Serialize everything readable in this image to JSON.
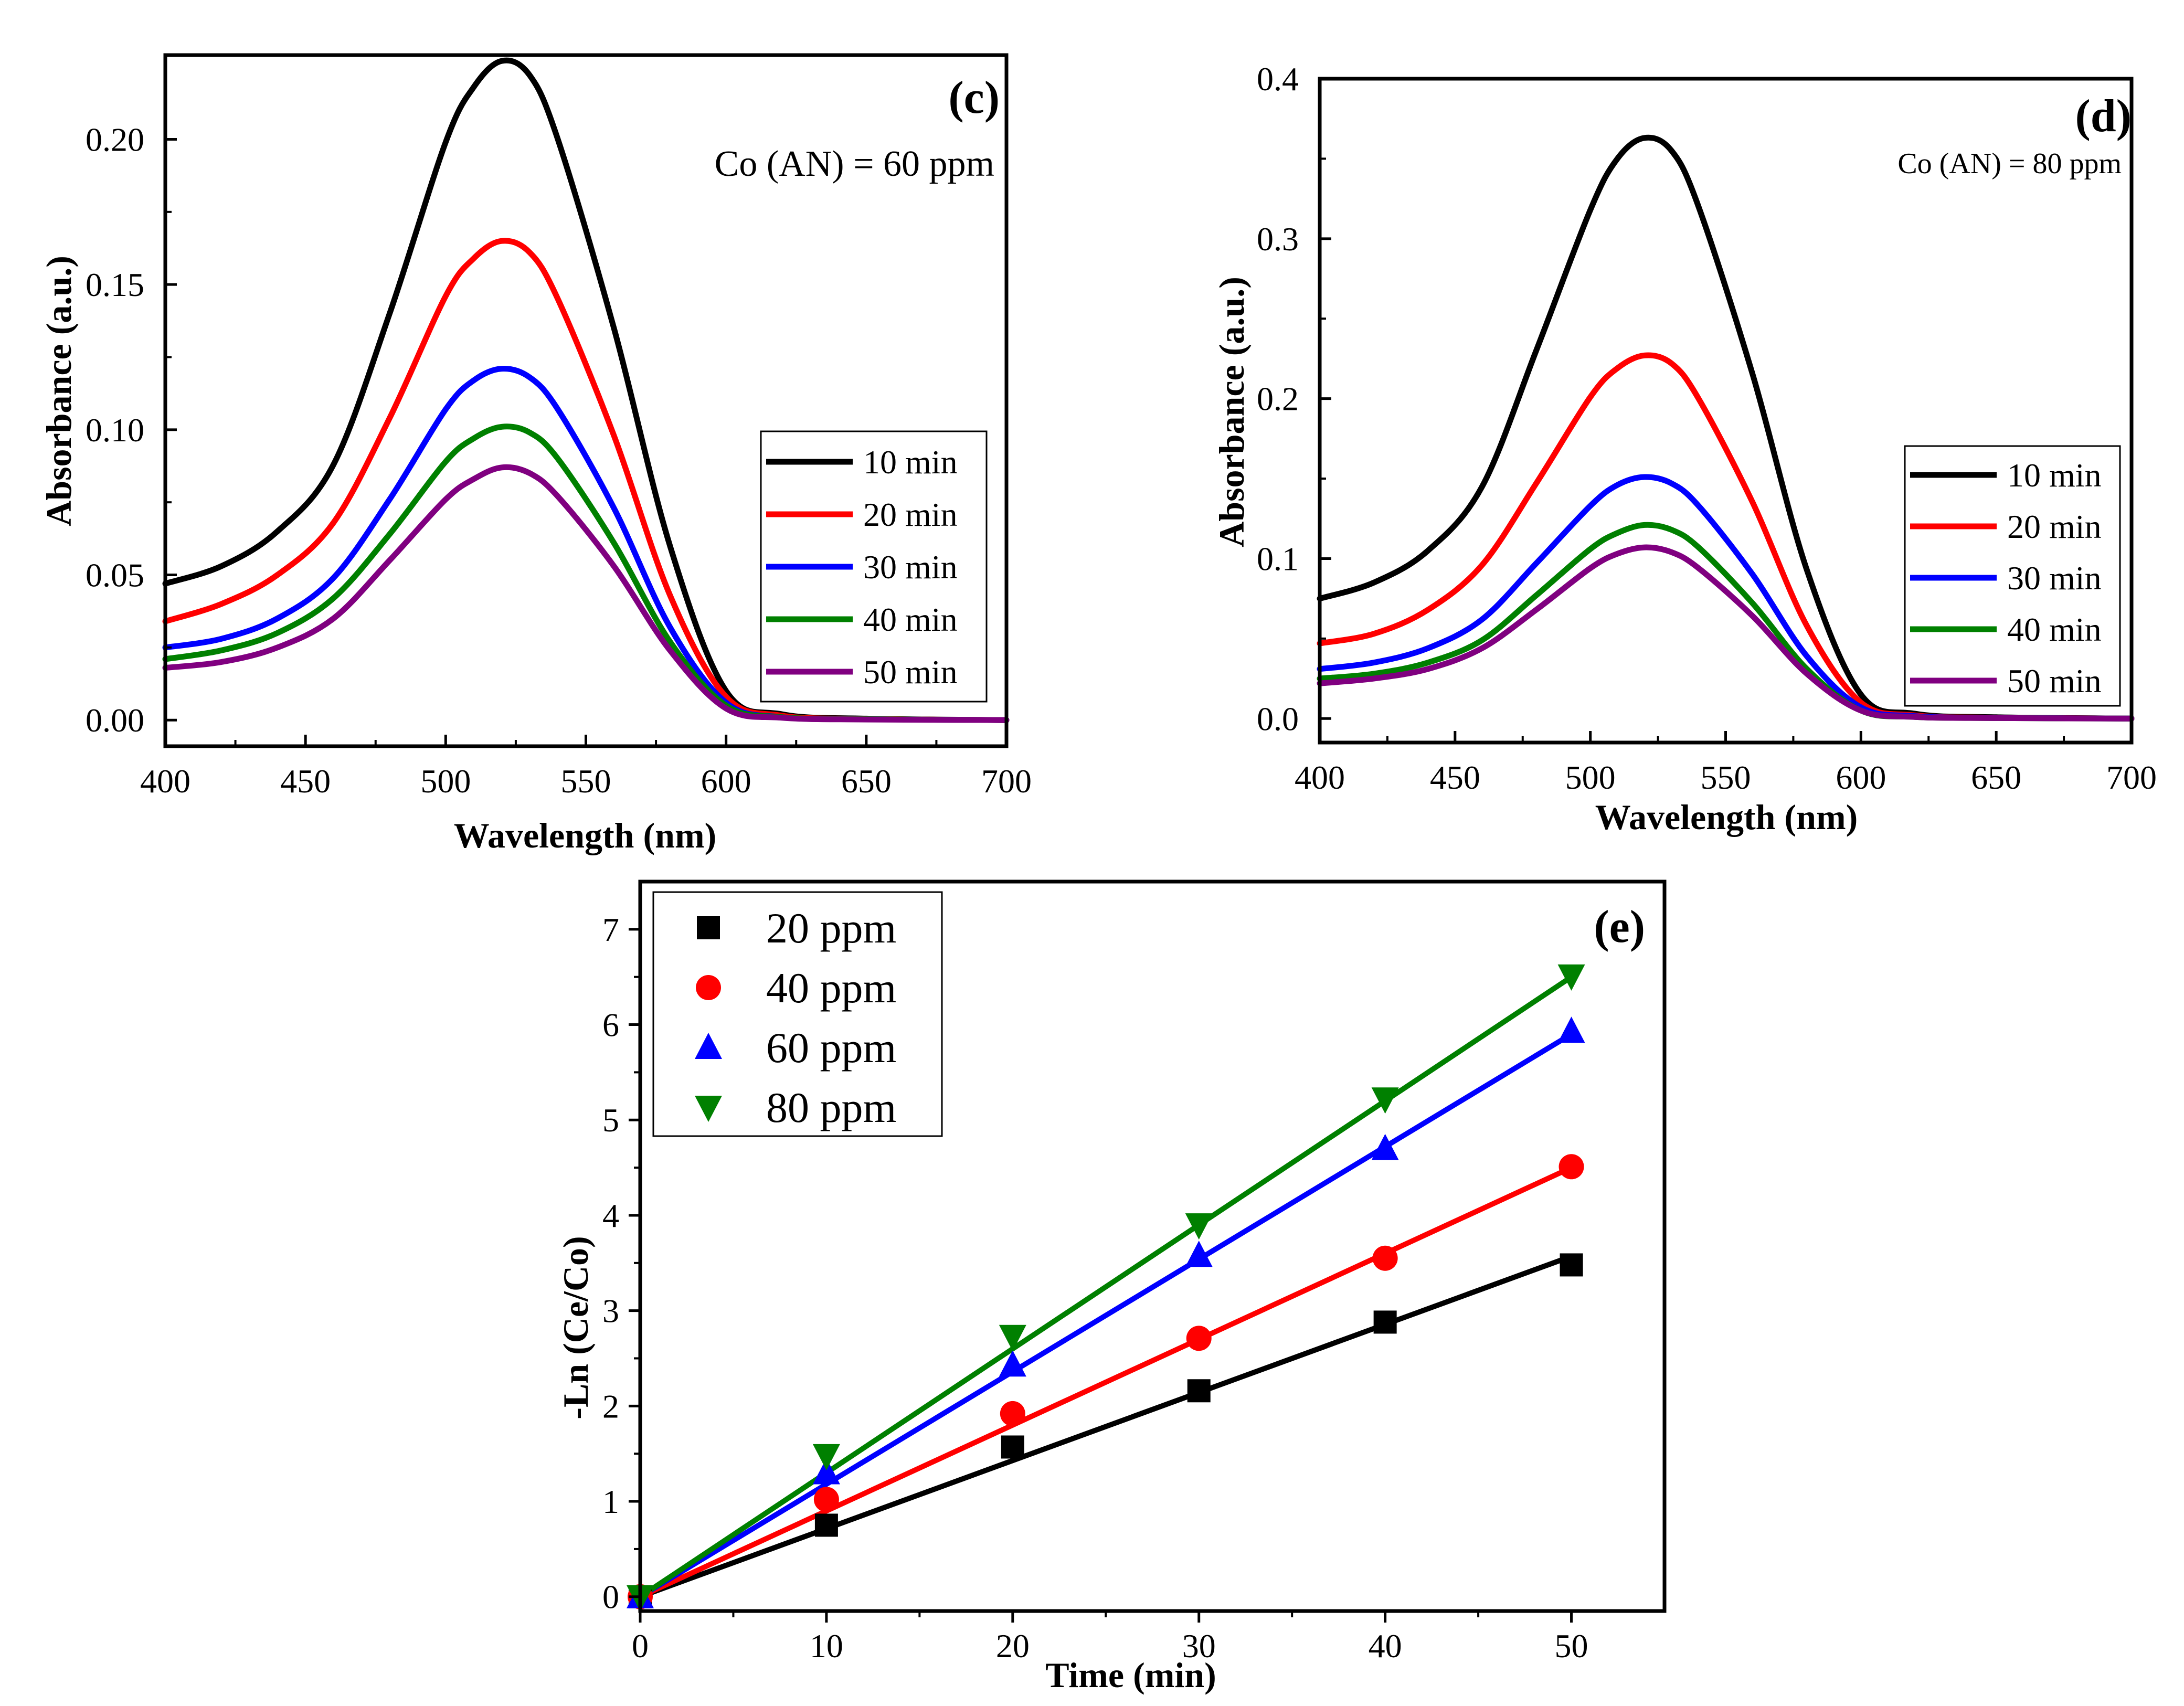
{
  "chart_data": [
    {
      "type": "line",
      "panel": "c",
      "panel_label": "(c)",
      "annotation": "Co (AN) = 60 ppm",
      "xlabel": "Wavelength (nm)",
      "ylabel": "Absorbance (a.u.)",
      "xlim": [
        400,
        700
      ],
      "ylim": [
        -0.009,
        0.229
      ],
      "xticks": [
        400,
        450,
        500,
        550,
        600,
        650,
        700
      ],
      "yticks": [
        0.0,
        0.05,
        0.1,
        0.15,
        0.2
      ],
      "ytick_labels": [
        "0.00",
        "0.05",
        "0.10",
        "0.15",
        "0.20"
      ],
      "legend_position": "center-right",
      "x": [
        400,
        420,
        440,
        460,
        480,
        500,
        510,
        520,
        530,
        540,
        560,
        580,
        600,
        620,
        650,
        700
      ],
      "series": [
        {
          "name": "10 min",
          "color": "#000000",
          "values": [
            0.047,
            0.053,
            0.065,
            0.088,
            0.14,
            0.199,
            0.218,
            0.227,
            0.222,
            0.2,
            0.135,
            0.06,
            0.01,
            0.002,
            0.0005,
            0.0
          ]
        },
        {
          "name": "20 min",
          "color": "#ff0000",
          "values": [
            0.034,
            0.04,
            0.05,
            0.068,
            0.104,
            0.146,
            0.159,
            0.165,
            0.161,
            0.145,
            0.098,
            0.043,
            0.008,
            0.0015,
            0.0004,
            0.0
          ]
        },
        {
          "name": "30 min",
          "color": "#0000ff",
          "values": [
            0.025,
            0.028,
            0.035,
            0.049,
            0.076,
            0.107,
            0.117,
            0.121,
            0.118,
            0.107,
            0.073,
            0.032,
            0.006,
            0.001,
            0.0003,
            0.0
          ]
        },
        {
          "name": "40 min",
          "color": "#008000",
          "values": [
            0.021,
            0.024,
            0.03,
            0.042,
            0.064,
            0.089,
            0.097,
            0.101,
            0.099,
            0.09,
            0.061,
            0.027,
            0.005,
            0.001,
            0.0003,
            0.0
          ]
        },
        {
          "name": "50 min",
          "color": "#800080",
          "values": [
            0.018,
            0.02,
            0.025,
            0.035,
            0.055,
            0.076,
            0.083,
            0.087,
            0.085,
            0.077,
            0.053,
            0.024,
            0.004,
            0.0008,
            0.0002,
            0.0
          ]
        }
      ]
    },
    {
      "type": "line",
      "panel": "d",
      "panel_label": "(d)",
      "annotation": "Co (AN) = 80 ppm",
      "xlabel": "Wavelength (nm)",
      "ylabel": "Absorbance (a.u.)",
      "xlim": [
        400,
        700
      ],
      "ylim": [
        -0.015,
        0.4
      ],
      "xticks": [
        400,
        450,
        500,
        550,
        600,
        650,
        700
      ],
      "yticks": [
        0.0,
        0.1,
        0.2,
        0.3,
        0.4
      ],
      "ytick_labels": [
        "0.0",
        "0.1",
        "0.2",
        "0.3",
        "0.4"
      ],
      "legend_position": "center-right",
      "x": [
        400,
        420,
        440,
        460,
        480,
        500,
        510,
        520,
        530,
        540,
        560,
        580,
        600,
        620,
        650,
        700
      ],
      "series": [
        {
          "name": "10 min",
          "color": "#000000",
          "values": [
            0.075,
            0.085,
            0.105,
            0.145,
            0.23,
            0.318,
            0.35,
            0.363,
            0.355,
            0.32,
            0.215,
            0.093,
            0.015,
            0.003,
            0.0008,
            0.0
          ]
        },
        {
          "name": "20 min",
          "color": "#ff0000",
          "values": [
            0.047,
            0.053,
            0.068,
            0.096,
            0.147,
            0.201,
            0.219,
            0.227,
            0.222,
            0.2,
            0.135,
            0.058,
            0.01,
            0.002,
            0.0005,
            0.0
          ]
        },
        {
          "name": "30 min",
          "color": "#0000ff",
          "values": [
            0.031,
            0.035,
            0.044,
            0.062,
            0.097,
            0.133,
            0.146,
            0.151,
            0.147,
            0.133,
            0.09,
            0.039,
            0.007,
            0.0015,
            0.0004,
            0.0
          ]
        },
        {
          "name": "40 min",
          "color": "#008000",
          "values": [
            0.025,
            0.028,
            0.035,
            0.049,
            0.077,
            0.106,
            0.116,
            0.121,
            0.118,
            0.107,
            0.072,
            0.031,
            0.005,
            0.001,
            0.0003,
            0.0
          ]
        },
        {
          "name": "50 min",
          "color": "#800080",
          "values": [
            0.022,
            0.025,
            0.031,
            0.044,
            0.068,
            0.094,
            0.103,
            0.107,
            0.104,
            0.094,
            0.064,
            0.028,
            0.005,
            0.001,
            0.0003,
            0.0
          ]
        }
      ]
    },
    {
      "type": "scatter",
      "panel": "e",
      "panel_label": "(e)",
      "xlabel": "Time (min)",
      "ylabel": "-Ln (Ce/Co)",
      "xlim": [
        0,
        55
      ],
      "ylim": [
        -0.15,
        7.5
      ],
      "xticks": [
        0,
        10,
        20,
        30,
        40,
        50
      ],
      "yticks": [
        0,
        1,
        2,
        3,
        4,
        5,
        6,
        7
      ],
      "legend_position": "top-left",
      "fit_lines": true,
      "x": [
        0,
        10,
        20,
        30,
        40,
        50
      ],
      "series": [
        {
          "name": "20 ppm",
          "color": "#000000",
          "marker": "square",
          "values": [
            0,
            0.75,
            1.57,
            2.16,
            2.88,
            3.48
          ],
          "fit": [
            0,
            3.57
          ]
        },
        {
          "name": "40 ppm",
          "color": "#ff0000",
          "marker": "circle",
          "values": [
            0,
            1.02,
            1.92,
            2.71,
            3.55,
            4.51
          ],
          "fit": [
            0,
            4.5
          ]
        },
        {
          "name": "60 ppm",
          "color": "#0000ff",
          "marker": "triangle-up",
          "values": [
            0,
            1.3,
            2.43,
            3.58,
            4.7,
            5.93
          ],
          "fit": [
            0,
            5.9
          ]
        },
        {
          "name": "80 ppm",
          "color": "#008000",
          "marker": "triangle-down",
          "values": [
            0,
            1.48,
            2.73,
            3.9,
            5.22,
            6.51
          ],
          "fit": [
            0,
            6.5
          ]
        }
      ]
    }
  ]
}
